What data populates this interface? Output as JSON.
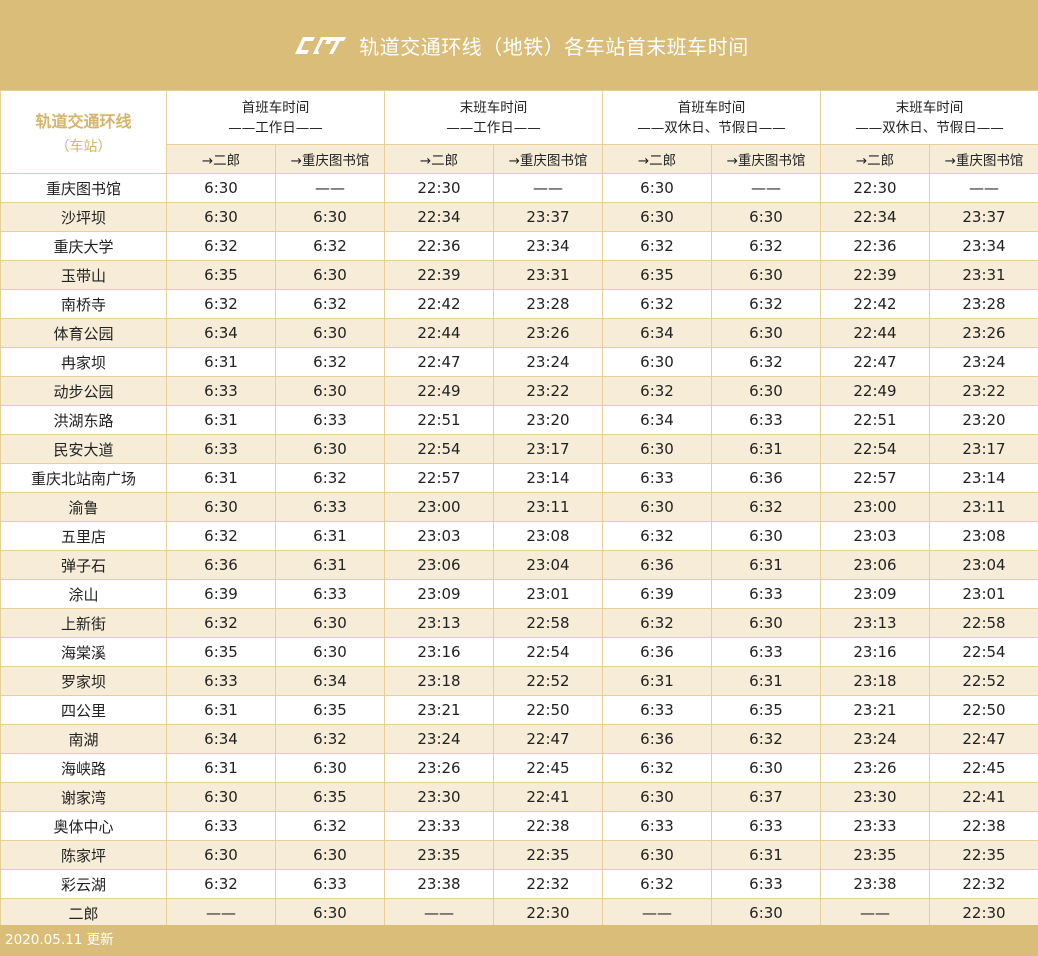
{
  "header": {
    "logo": "crt-logo",
    "title": "轨道交通环线（地铁）各车站首末班车时间"
  },
  "table": {
    "corner_title": "轨道交通环线",
    "corner_sub": "（车站）",
    "groups": [
      {
        "line1": "首班车时间",
        "line2": "——工作日——"
      },
      {
        "line1": "末班车时间",
        "line2": "——工作日——"
      },
      {
        "line1": "首班车时间",
        "line2": "——双休日、节假日——"
      },
      {
        "line1": "末班车时间",
        "line2": "——双休日、节假日——"
      }
    ],
    "directions": [
      "→二郎",
      "→重庆图书馆",
      "→二郎",
      "→重庆图书馆",
      "→二郎",
      "→重庆图书馆",
      "→二郎",
      "→重庆图书馆"
    ],
    "rows": [
      {
        "station": "重庆图书馆",
        "times": [
          "6:30",
          "——",
          "22:30",
          "——",
          "6:30",
          "——",
          "22:30",
          "——"
        ]
      },
      {
        "station": "沙坪坝",
        "times": [
          "6:30",
          "6:30",
          "22:34",
          "23:37",
          "6:30",
          "6:30",
          "22:34",
          "23:37"
        ]
      },
      {
        "station": "重庆大学",
        "times": [
          "6:32",
          "6:32",
          "22:36",
          "23:34",
          "6:32",
          "6:32",
          "22:36",
          "23:34"
        ]
      },
      {
        "station": "玉带山",
        "times": [
          "6:35",
          "6:30",
          "22:39",
          "23:31",
          "6:35",
          "6:30",
          "22:39",
          "23:31"
        ]
      },
      {
        "station": "南桥寺",
        "times": [
          "6:32",
          "6:32",
          "22:42",
          "23:28",
          "6:32",
          "6:32",
          "22:42",
          "23:28"
        ]
      },
      {
        "station": "体育公园",
        "times": [
          "6:34",
          "6:30",
          "22:44",
          "23:26",
          "6:34",
          "6:30",
          "22:44",
          "23:26"
        ]
      },
      {
        "station": "冉家坝",
        "times": [
          "6:31",
          "6:32",
          "22:47",
          "23:24",
          "6:30",
          "6:32",
          "22:47",
          "23:24"
        ]
      },
      {
        "station": "动步公园",
        "times": [
          "6:33",
          "6:30",
          "22:49",
          "23:22",
          "6:32",
          "6:30",
          "22:49",
          "23:22"
        ]
      },
      {
        "station": "洪湖东路",
        "times": [
          "6:31",
          "6:33",
          "22:51",
          "23:20",
          "6:34",
          "6:33",
          "22:51",
          "23:20"
        ]
      },
      {
        "station": "民安大道",
        "times": [
          "6:33",
          "6:30",
          "22:54",
          "23:17",
          "6:30",
          "6:31",
          "22:54",
          "23:17"
        ]
      },
      {
        "station": "重庆北站南广场",
        "times": [
          "6:31",
          "6:32",
          "22:57",
          "23:14",
          "6:33",
          "6:36",
          "22:57",
          "23:14"
        ]
      },
      {
        "station": "渝鲁",
        "times": [
          "6:30",
          "6:33",
          "23:00",
          "23:11",
          "6:30",
          "6:32",
          "23:00",
          "23:11"
        ]
      },
      {
        "station": "五里店",
        "times": [
          "6:32",
          "6:31",
          "23:03",
          "23:08",
          "6:32",
          "6:30",
          "23:03",
          "23:08"
        ]
      },
      {
        "station": "弹子石",
        "times": [
          "6:36",
          "6:31",
          "23:06",
          "23:04",
          "6:36",
          "6:31",
          "23:06",
          "23:04"
        ]
      },
      {
        "station": "涂山",
        "times": [
          "6:39",
          "6:33",
          "23:09",
          "23:01",
          "6:39",
          "6:33",
          "23:09",
          "23:01"
        ]
      },
      {
        "station": "上新街",
        "times": [
          "6:32",
          "6:30",
          "23:13",
          "22:58",
          "6:32",
          "6:30",
          "23:13",
          "22:58"
        ]
      },
      {
        "station": "海棠溪",
        "times": [
          "6:35",
          "6:30",
          "23:16",
          "22:54",
          "6:36",
          "6:33",
          "23:16",
          "22:54"
        ]
      },
      {
        "station": "罗家坝",
        "times": [
          "6:33",
          "6:34",
          "23:18",
          "22:52",
          "6:31",
          "6:31",
          "23:18",
          "22:52"
        ]
      },
      {
        "station": "四公里",
        "times": [
          "6:31",
          "6:35",
          "23:21",
          "22:50",
          "6:33",
          "6:35",
          "23:21",
          "22:50"
        ]
      },
      {
        "station": "南湖",
        "times": [
          "6:34",
          "6:32",
          "23:24",
          "22:47",
          "6:36",
          "6:32",
          "23:24",
          "22:47"
        ]
      },
      {
        "station": "海峡路",
        "times": [
          "6:31",
          "6:30",
          "23:26",
          "22:45",
          "6:32",
          "6:30",
          "23:26",
          "22:45"
        ]
      },
      {
        "station": "谢家湾",
        "times": [
          "6:30",
          "6:35",
          "23:30",
          "22:41",
          "6:30",
          "6:37",
          "23:30",
          "22:41"
        ]
      },
      {
        "station": "奥体中心",
        "times": [
          "6:33",
          "6:32",
          "23:33",
          "22:38",
          "6:33",
          "6:33",
          "23:33",
          "22:38"
        ]
      },
      {
        "station": "陈家坪",
        "times": [
          "6:30",
          "6:30",
          "23:35",
          "22:35",
          "6:30",
          "6:31",
          "23:35",
          "22:35"
        ]
      },
      {
        "station": "彩云湖",
        "times": [
          "6:32",
          "6:33",
          "23:38",
          "22:32",
          "6:32",
          "6:33",
          "23:38",
          "22:32"
        ]
      },
      {
        "station": "二郎",
        "times": [
          "——",
          "6:30",
          "——",
          "22:30",
          "——",
          "6:30",
          "——",
          "22:30"
        ]
      }
    ]
  },
  "footer": {
    "updated": "2020.05.11 更新"
  },
  "colors": {
    "banner": "#d9bd78",
    "stripe": "#f6ecd7",
    "border": "#e7cf98",
    "corner_text": "#d4b56a"
  }
}
